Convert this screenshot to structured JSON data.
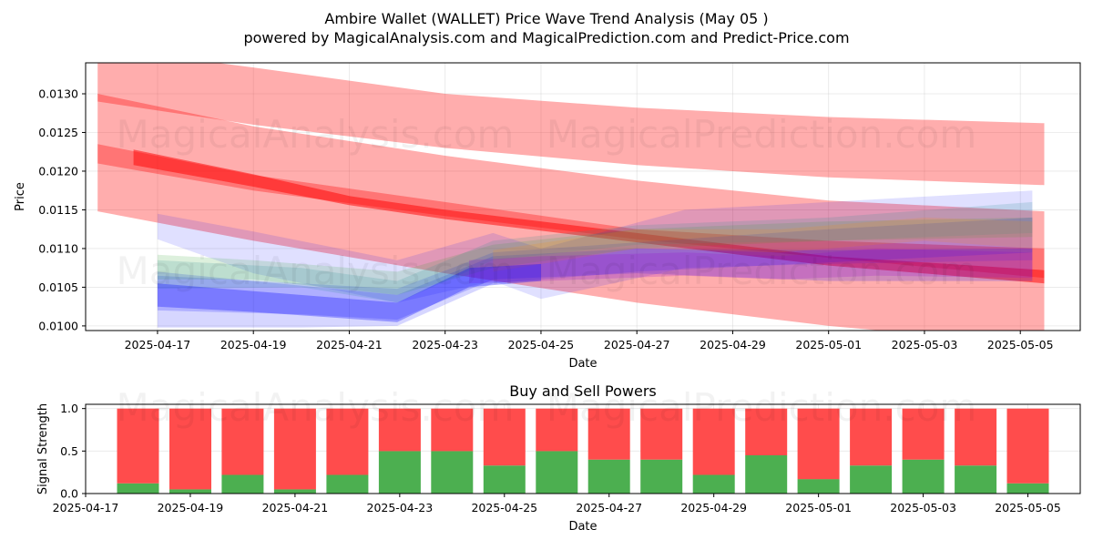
{
  "title_line1": "Ambire Wallet (WALLET) Price Wave Trend Analysis (May 05 )",
  "title_line2": "powered by MagicalAnalysis.com and MagicalPrediction.com and Predict-Price.com",
  "watermarks": [
    "MagicalAnalysis.com",
    "MagicalPrediction.com"
  ],
  "colors": {
    "red": "#ff0000",
    "blue": "#0000ff",
    "green": "#2ca02c",
    "orange": "#ff8c00",
    "teal": "#2f8f8f",
    "purple": "#9400d3",
    "buy": "#4caf50",
    "sell": "#ff4c4c"
  },
  "chart_data": [
    {
      "type": "area",
      "xlabel": "Date",
      "ylabel": "Price",
      "xlim": [
        "2025-04-15T12:00",
        "2025-05-06T06:00"
      ],
      "ylim": [
        0.00994,
        0.0134
      ],
      "xticks": [
        "2025-04-17",
        "2025-04-19",
        "2025-04-21",
        "2025-04-23",
        "2025-04-25",
        "2025-04-27",
        "2025-04-29",
        "2025-05-01",
        "2025-05-03",
        "2025-05-05"
      ],
      "yticks": [
        "0.0100",
        "0.0105",
        "0.0110",
        "0.0115",
        "0.0120",
        "0.0125",
        "0.0130"
      ],
      "grid": true,
      "bands": [
        {
          "color": "red",
          "opacity": 0.32,
          "points": [
            [
              "2025-04-15T18:00",
              0.0129,
              0.0136
            ],
            [
              "2025-04-19T00:00",
              0.0126,
              0.01334
            ],
            [
              "2025-04-23T00:00",
              0.0123,
              0.013
            ],
            [
              "2025-04-27T00:00",
              0.01208,
              0.01282
            ],
            [
              "2025-05-01T00:00",
              0.01192,
              0.0127
            ],
            [
              "2025-05-05T12:00",
              0.01182,
              0.01262
            ]
          ]
        },
        {
          "color": "red",
          "opacity": 0.32,
          "points": [
            [
              "2025-04-15T18:00",
              0.0121,
              0.013
            ],
            [
              "2025-04-19T00:00",
              0.01175,
              0.01258
            ],
            [
              "2025-04-23T00:00",
              0.01142,
              0.0122
            ],
            [
              "2025-04-27T00:00",
              0.01112,
              0.01188
            ],
            [
              "2025-05-01T00:00",
              0.01088,
              0.01162
            ],
            [
              "2025-05-05T12:00",
              0.01062,
              0.01148
            ]
          ]
        },
        {
          "color": "red",
          "opacity": 0.32,
          "points": [
            [
              "2025-04-15T18:00",
              0.01148,
              0.01235
            ],
            [
              "2025-04-19T00:00",
              0.0111,
              0.01195
            ],
            [
              "2025-04-23T00:00",
              0.01068,
              0.0116
            ],
            [
              "2025-04-27T00:00",
              0.0103,
              0.01125
            ],
            [
              "2025-05-01T00:00",
              0.01,
              0.0111
            ],
            [
              "2025-05-05T12:00",
              0.00975,
              0.011
            ]
          ]
        },
        {
          "color": "red",
          "opacity": 0.5,
          "points": [
            [
              "2025-04-16T12:00",
              0.01208,
              0.01228
            ],
            [
              "2025-04-19T00:00",
              0.0118,
              0.01196
            ],
            [
              "2025-04-21T00:00",
              0.01156,
              0.01168
            ],
            [
              "2025-04-23T00:00",
              0.01138,
              0.0115
            ],
            [
              "2025-04-27T00:00",
              0.01108,
              0.0112
            ],
            [
              "2025-05-01T00:00",
              0.01078,
              0.0109
            ],
            [
              "2025-05-05T12:00",
              0.01055,
              0.01072
            ]
          ]
        },
        {
          "color": "blue",
          "opacity": 0.12,
          "points": [
            [
              "2025-04-17T00:00",
              0.01112,
              0.01145
            ],
            [
              "2025-04-19T00:00",
              0.01068,
              0.01122
            ],
            [
              "2025-04-22T00:00",
              0.0103,
              0.01085
            ],
            [
              "2025-04-24T00:00",
              0.01058,
              0.0112
            ],
            [
              "2025-04-25T00:00",
              0.01035,
              0.011
            ],
            [
              "2025-04-28T00:00",
              0.01075,
              0.0115
            ],
            [
              "2025-05-01T00:00",
              0.0108,
              0.0116
            ],
            [
              "2025-05-05T06:00",
              0.01085,
              0.01175
            ]
          ]
        },
        {
          "color": "blue",
          "opacity": 0.16,
          "points": [
            [
              "2025-04-17T00:00",
              0.00998,
              0.01065
            ],
            [
              "2025-04-20T00:00",
              0.00998,
              0.01055
            ],
            [
              "2025-04-22T00:00",
              0.01,
              0.01048
            ],
            [
              "2025-04-24T00:00",
              0.01055,
              0.01095
            ],
            [
              "2025-04-27T00:00",
              0.0107,
              0.01108
            ],
            [
              "2025-05-01T00:00",
              0.01082,
              0.01125
            ],
            [
              "2025-05-05T06:00",
              0.01095,
              0.0114
            ]
          ]
        },
        {
          "color": "blue",
          "opacity": 0.18,
          "points": [
            [
              "2025-04-17T00:00",
              0.0102,
              0.0107
            ],
            [
              "2025-04-20T00:00",
              0.01015,
              0.01052
            ],
            [
              "2025-04-22T00:00",
              0.01008,
              0.0104
            ],
            [
              "2025-04-24T00:00",
              0.0106,
              0.0109
            ],
            [
              "2025-04-27T00:00",
              0.01068,
              0.011
            ],
            [
              "2025-05-01T00:00",
              0.01058,
              0.01098
            ],
            [
              "2025-05-05T06:00",
              0.01058,
              0.011
            ]
          ]
        },
        {
          "color": "green",
          "opacity": 0.16,
          "points": [
            [
              "2025-04-17T00:00",
              0.0106,
              0.01092
            ],
            [
              "2025-04-19T00:00",
              0.0106,
              0.01085
            ],
            [
              "2025-04-22T00:00",
              0.0104,
              0.0107
            ],
            [
              "2025-04-24T00:00",
              0.01075,
              0.01105
            ],
            [
              "2025-04-27T00:00",
              0.011,
              0.01125
            ],
            [
              "2025-05-01T00:00",
              0.0111,
              0.01135
            ],
            [
              "2025-05-05T06:00",
              0.01115,
              0.0114
            ]
          ]
        },
        {
          "color": "teal",
          "opacity": 0.18,
          "points": [
            [
              "2025-04-17T00:00",
              0.01048,
              0.01085
            ],
            [
              "2025-04-20T00:00",
              0.0105,
              0.01075
            ],
            [
              "2025-04-22T00:00",
              0.0103,
              0.01058
            ],
            [
              "2025-04-24T00:00",
              0.01085,
              0.0111
            ],
            [
              "2025-04-27T00:00",
              0.01105,
              0.0113
            ],
            [
              "2025-05-01T00:00",
              0.0111,
              0.0114
            ],
            [
              "2025-05-05T06:00",
              0.0112,
              0.0116
            ]
          ]
        },
        {
          "color": "orange",
          "opacity": 0.16,
          "points": [
            [
              "2025-04-24T00:00",
              0.0107,
              0.01098
            ],
            [
              "2025-04-27T00:00",
              0.011,
              0.01125
            ],
            [
              "2025-04-30T00:00",
              0.01095,
              0.01125
            ],
            [
              "2025-05-03T00:00",
              0.0111,
              0.0114
            ],
            [
              "2025-05-05T06:00",
              0.011,
              0.01135
            ]
          ]
        },
        {
          "color": "purple",
          "opacity": 0.2,
          "points": [
            [
              "2025-04-23T12:00",
              0.01055,
              0.01085
            ],
            [
              "2025-04-25T00:00",
              0.01058,
              0.0109
            ],
            [
              "2025-04-28T00:00",
              0.01065,
              0.01095
            ],
            [
              "2025-04-30T00:00",
              0.0106,
              0.0109
            ],
            [
              "2025-05-02T00:00",
              0.01065,
              0.011
            ],
            [
              "2025-05-05T06:00",
              0.01062,
              0.01095
            ]
          ]
        },
        {
          "color": "blue",
          "opacity": 0.3,
          "points": [
            [
              "2025-04-17T00:00",
              0.01025,
              0.01055
            ],
            [
              "2025-04-19T00:00",
              0.01018,
              0.01045
            ],
            [
              "2025-04-22T00:00",
              0.01005,
              0.0103
            ],
            [
              "2025-04-23T12:00",
              0.0105,
              0.01075
            ],
            [
              "2025-04-25T00:00",
              0.01058,
              0.0108
            ]
          ]
        }
      ]
    },
    {
      "type": "bar",
      "title": "Buy and Sell Powers",
      "xlabel": "Date",
      "ylabel": "Signal Strength",
      "xlim": [
        "2025-04-17T00:00",
        "2025-05-06T00:00"
      ],
      "ylim": [
        0,
        1.05
      ],
      "xticks": [
        "2025-04-17",
        "2025-04-19",
        "2025-04-21",
        "2025-04-23",
        "2025-04-25",
        "2025-04-27",
        "2025-04-29",
        "2025-05-01",
        "2025-05-03",
        "2025-05-05"
      ],
      "yticks": [
        "0.0",
        "0.5",
        "1.0"
      ],
      "grid": true,
      "categories": [
        "2025-04-18",
        "2025-04-19",
        "2025-04-20",
        "2025-04-21",
        "2025-04-22",
        "2025-04-23",
        "2025-04-24",
        "2025-04-25",
        "2025-04-26",
        "2025-04-27",
        "2025-04-28",
        "2025-04-29",
        "2025-04-30",
        "2025-05-01",
        "2025-05-02",
        "2025-05-03",
        "2025-05-04",
        "2025-05-05"
      ],
      "series": [
        {
          "color": "buy",
          "values": [
            0.12,
            0.05,
            0.22,
            0.05,
            0.22,
            0.5,
            0.5,
            0.33,
            0.5,
            0.4,
            0.4,
            0.22,
            0.45,
            0.17,
            0.33,
            0.4,
            0.33,
            0.12
          ]
        },
        {
          "color": "sell",
          "values": [
            0.88,
            0.95,
            0.78,
            0.95,
            0.78,
            0.5,
            0.5,
            0.67,
            0.5,
            0.6,
            0.6,
            0.78,
            0.55,
            0.83,
            0.67,
            0.6,
            0.67,
            0.88
          ]
        }
      ]
    }
  ]
}
